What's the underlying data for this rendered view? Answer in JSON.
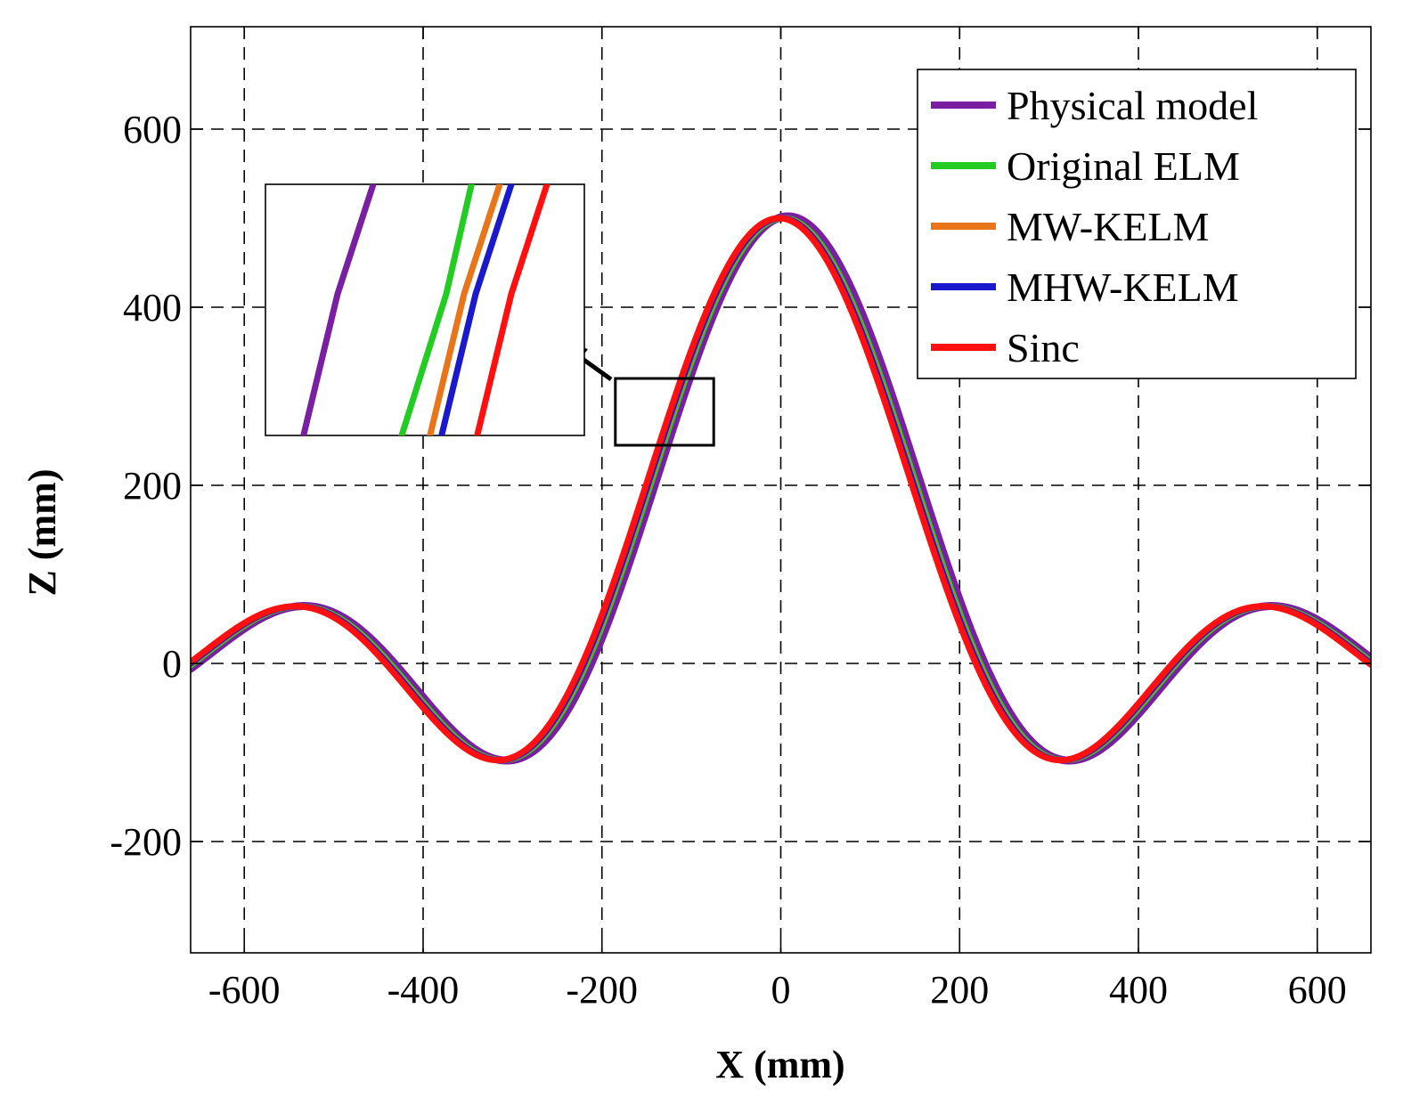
{
  "chart_data": {
    "type": "line",
    "title": "",
    "xlabel": "X (mm)",
    "ylabel": "Z (mm)",
    "xlim": [
      -660,
      660
    ],
    "ylim": [
      -325,
      715
    ],
    "xticks": [
      -600,
      -400,
      -200,
      0,
      200,
      400,
      600
    ],
    "yticks": [
      -200,
      0,
      200,
      400,
      600
    ],
    "xtick_labels": [
      "-600",
      "-400",
      "-200",
      "0",
      "200",
      "400",
      "600"
    ],
    "ytick_labels": [
      "-200",
      "0",
      "200",
      "400",
      "600"
    ],
    "grid": true,
    "legend_position": "top-right",
    "series": [
      {
        "name": "Physical model",
        "color": "#7a1fa2",
        "x_shift": 8,
        "amplitude": 502
      },
      {
        "name": "Original ELM",
        "color": "#22cc22",
        "x_shift": 3,
        "amplitude": 500
      },
      {
        "name": "MW-KELM",
        "color": "#e8751a",
        "x_shift": 1,
        "amplitude": 500
      },
      {
        "name": "MHW-KELM",
        "color": "#1a1acc",
        "x_shift": 0,
        "amplitude": 500
      },
      {
        "name": "Sinc",
        "color": "#ff1010",
        "x_shift": -2,
        "amplitude": 500
      }
    ],
    "curve": {
      "formula": "amplitude * sin(pi*x/L)/(pi*x/L)",
      "L": 220,
      "x_range": [
        -660,
        660
      ]
    },
    "zoom_region": {
      "x": [
        -185,
        -75
      ],
      "y": [
        245,
        320
      ]
    },
    "inset_stroke_offsets": [
      0,
      110,
      142,
      155,
      195
    ]
  }
}
